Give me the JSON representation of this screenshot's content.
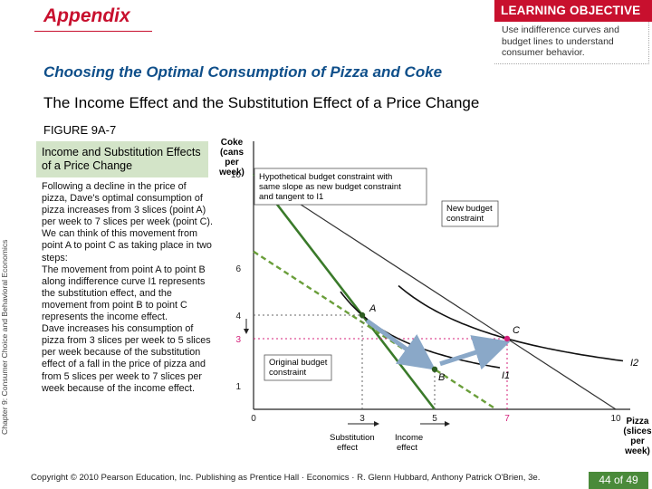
{
  "header": {
    "section": "Appendix",
    "learning_objective": {
      "title": "LEARNING OBJECTIVE",
      "body": "Use indifference curves and budget lines to understand consumer behavior."
    }
  },
  "title": "Choosing the Optimal Consumption of Pizza and Coke",
  "subtitle": "The Income Effect and the Substitution Effect of a Price Change",
  "figure": {
    "label": "FIGURE 9A-7",
    "heading": "Income and Substitution Effects of a Price Change",
    "paragraphs": [
      "Following a decline in the price of pizza, Dave's optimal consumption of pizza increases from 3 slices (point A) per week to 7 slices per week (point C). We can think of this movement from point A to point C as taking place in two steps:",
      "The movement from point A to point B along indifference curve I1 represents the substitution effect, and the movement from point B to point C represents the income effect.",
      "Dave increases his consumption of pizza from 3 slices per week to 5 slices per week because of the substitution effect of a fall in the price of pizza and from 5 slices per week to 7 slices per week because of the income effect."
    ]
  },
  "chart_data": {
    "type": "line",
    "ylabel": "Coke (cans per week)",
    "xlabel": "Pizza (slices per week)",
    "x_ticks": [
      "0",
      "3",
      "5",
      "7",
      "10"
    ],
    "y_ticks": [
      "1",
      "3",
      "4",
      "6",
      "10"
    ],
    "xlim": [
      0,
      12
    ],
    "ylim": [
      0,
      12
    ],
    "points": [
      {
        "name": "A",
        "x": 3,
        "y": 4
      },
      {
        "name": "B",
        "x": 5,
        "y": 1.7
      },
      {
        "name": "C",
        "x": 7,
        "y": 3
      }
    ],
    "budget_lines": [
      {
        "name": "Original budget constraint",
        "x_intercept": 5,
        "y_intercept": 10
      },
      {
        "name": "New budget constraint",
        "x_intercept": 10,
        "y_intercept": 10
      },
      {
        "name": "Hypothetical budget constraint with same slope as new budget constraint and tangent to I1",
        "x_intercept": 6.7,
        "y_intercept": 6.7
      }
    ],
    "indifference_curves": [
      "I1",
      "I2"
    ],
    "annotations": {
      "hypothetical_label_lines": [
        "Hypothetical budget constraint with",
        "same slope as new budget constraint",
        "and tangent to I1"
      ],
      "new_label_lines": [
        "New budget",
        "constraint"
      ],
      "original_label_lines": [
        "Original budget",
        "constraint"
      ],
      "substitution_effect_lines": [
        "Substitution",
        "effect"
      ],
      "income_effect_lines": [
        "Income",
        "effect"
      ]
    },
    "colors": {
      "original": "#3a7a2a",
      "hypothetical": "#6a9e3a",
      "new": "#333333",
      "effects": "#8aa8c8",
      "point_c": "#d4207a"
    }
  },
  "sidebar_vertical": "Chapter 9: Consumer Choice and Behavioral Economics",
  "footer": {
    "copyright": "Copyright © 2010 Pearson Education, Inc. Publishing as Prentice Hall · Economics · R. Glenn Hubbard, Anthony Patrick O'Brien, 3e.",
    "page": "44 of 49"
  }
}
